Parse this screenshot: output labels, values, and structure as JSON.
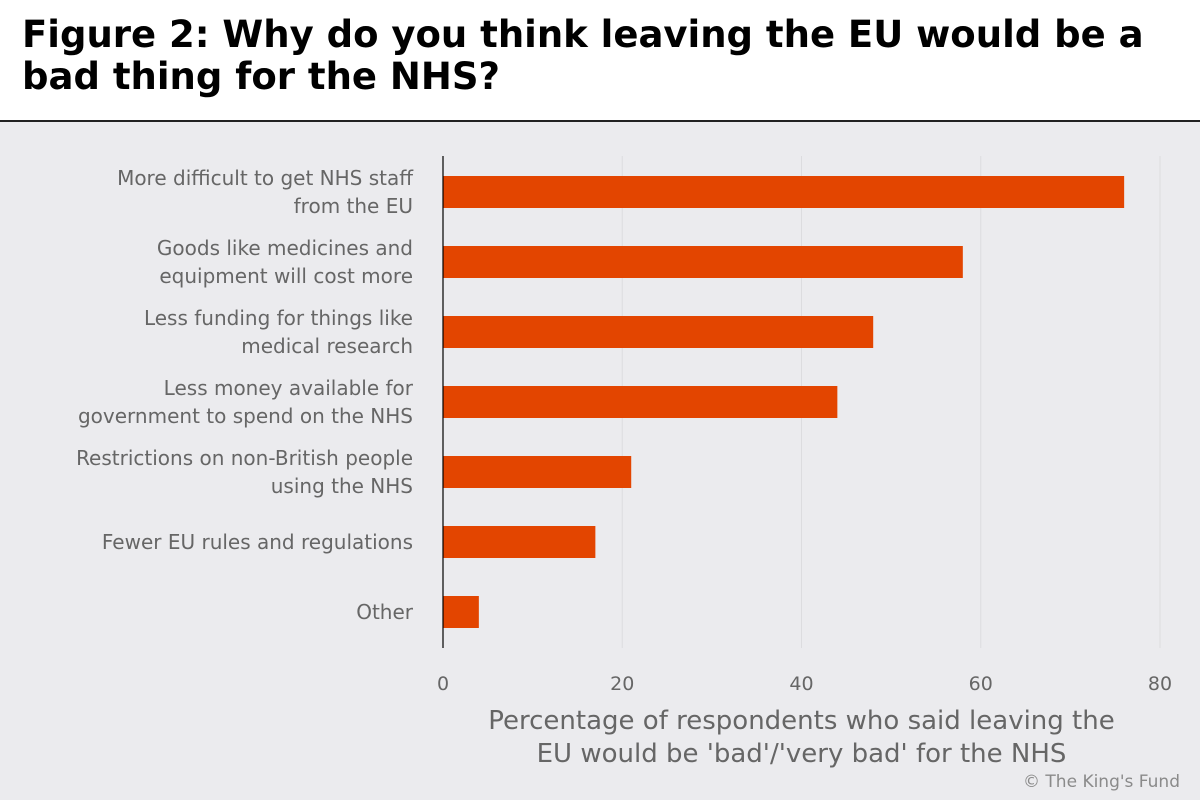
{
  "page": {
    "title_line1": "Figure 2: Why do you think leaving the EU would be a",
    "title_line2": "bad thing for the NHS?",
    "credit": "© The King's Fund"
  },
  "colors": {
    "bar": "#e34500",
    "background": "#ebebee",
    "label": "#666666",
    "grid": "#dcdcdf",
    "axis": "#000000"
  },
  "chart_data": {
    "type": "bar",
    "orientation": "horizontal",
    "title": "Figure 2: Why do you think leaving the EU would be a bad thing for the NHS?",
    "categories": [
      [
        "More difficult to get NHS staff",
        "from the EU"
      ],
      [
        "Goods like medicines and",
        "equipment will cost more"
      ],
      [
        "Less funding for things like",
        "medical research"
      ],
      [
        "Less money available for",
        "government to spend on the NHS"
      ],
      [
        "Restrictions on non-British people",
        "using the NHS"
      ],
      [
        "Fewer EU rules and regulations"
      ],
      [
        "Other"
      ]
    ],
    "values": [
      76,
      58,
      48,
      44,
      21,
      17,
      4
    ],
    "xlim": [
      0,
      80
    ],
    "xticks": [
      0,
      20,
      40,
      60,
      80
    ],
    "xlabel_lines": [
      "Percentage of respondents who said leaving the",
      "EU would be 'bad'/'very bad' for the NHS"
    ],
    "ylabel": "",
    "grid": true,
    "legend": "none"
  }
}
